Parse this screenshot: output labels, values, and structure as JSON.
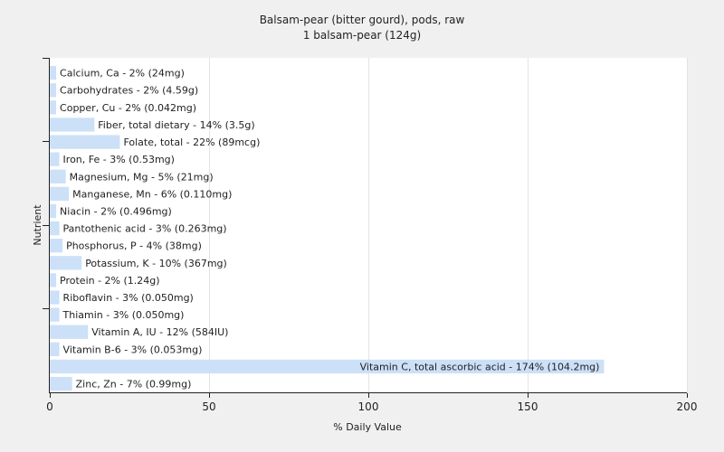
{
  "chart_data": {
    "type": "bar",
    "orientation": "horizontal",
    "title": "Balsam-pear (bitter gourd), pods, raw",
    "subtitle": "1 balsam-pear (124g)",
    "xlabel": "% Daily Value",
    "ylabel": "Nutrient",
    "xlim": [
      0,
      200
    ],
    "xticks": [
      0,
      50,
      100,
      150,
      200
    ],
    "grid": true,
    "bar_color": "#cce0f8",
    "categories": [
      "Calcium, Ca",
      "Carbohydrates",
      "Copper, Cu",
      "Fiber, total dietary",
      "Folate, total",
      "Iron, Fe",
      "Magnesium, Mg",
      "Manganese, Mn",
      "Niacin",
      "Pantothenic acid",
      "Phosphorus, P",
      "Potassium, K",
      "Protein",
      "Riboflavin",
      "Thiamin",
      "Vitamin A, IU",
      "Vitamin B-6",
      "Vitamin C, total ascorbic acid",
      "Zinc, Zn"
    ],
    "values": [
      2,
      2,
      2,
      14,
      22,
      3,
      5,
      6,
      2,
      3,
      4,
      10,
      2,
      3,
      3,
      12,
      3,
      174,
      7
    ],
    "labels": [
      "Calcium, Ca - 2% (24mg)",
      "Carbohydrates - 2% (4.59g)",
      "Copper, Cu - 2% (0.042mg)",
      "Fiber, total dietary - 14% (3.5g)",
      "Folate, total - 22% (89mcg)",
      "Iron, Fe - 3% (0.53mg)",
      "Magnesium, Mg - 5% (21mg)",
      "Manganese, Mn - 6% (0.110mg)",
      "Niacin - 2% (0.496mg)",
      "Pantothenic acid - 3% (0.263mg)",
      "Phosphorus, P - 4% (38mg)",
      "Potassium, K - 10% (367mg)",
      "Protein - 2% (1.24g)",
      "Riboflavin - 3% (0.050mg)",
      "Thiamin - 3% (0.050mg)",
      "Vitamin A, IU - 12% (584IU)",
      "Vitamin B-6 - 3% (0.053mg)",
      "Vitamin C, total ascorbic acid - 174% (104.2mg)",
      "Zinc, Zn - 7% (0.99mg)"
    ]
  }
}
